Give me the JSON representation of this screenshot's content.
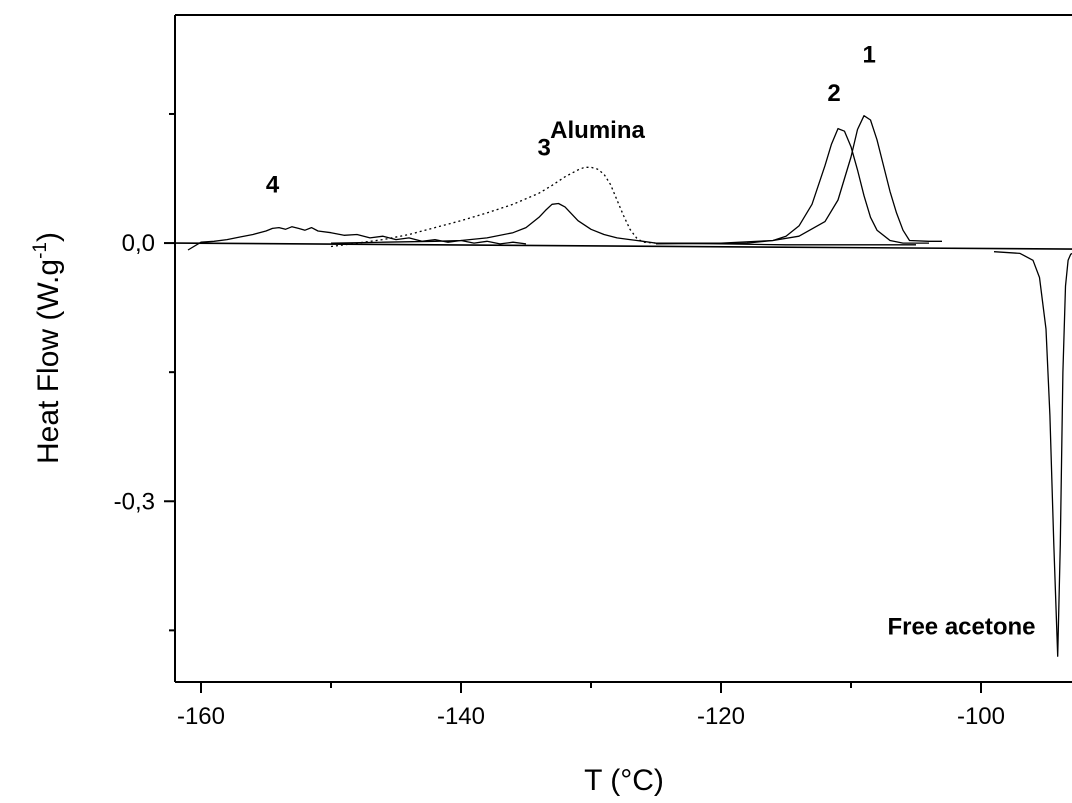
{
  "chart_data": {
    "type": "line",
    "title": "",
    "xlabel": "T (°C)",
    "ylabel": "Heat Flow (W.g",
    "ylabel_sup": "-1",
    "ylabel_close": ")",
    "xlim": [
      -162,
      -93
    ],
    "ylim": [
      -0.51,
      0.265
    ],
    "x_ticks": [
      -160,
      -140,
      -120,
      -100
    ],
    "x_tick_labels": [
      "-160",
      "-140",
      "-120",
      "-100"
    ],
    "y_ticks": [
      0.0,
      -0.3
    ],
    "y_tick_labels": [
      "0,0",
      "-0,3"
    ],
    "y_minor_ticks": [
      0.15,
      -0.15,
      -0.45
    ],
    "grid": false,
    "annotations": [
      {
        "text": "1",
        "x": -108.6,
        "y": 0.21
      },
      {
        "text": "2",
        "x": -111.3,
        "y": 0.165
      },
      {
        "text": "3",
        "x": -133.6,
        "y": 0.102
      },
      {
        "text": "Alumina",
        "x": -129.5,
        "y": 0.122
      },
      {
        "text": "4",
        "x": -154.5,
        "y": 0.059
      },
      {
        "text": "Free acetone",
        "x": -101.5,
        "y": -0.455
      }
    ],
    "series": [
      {
        "label": "1",
        "style": "solid",
        "x": [
          -125,
          -120,
          -116,
          -114,
          -112,
          -111,
          -110,
          -109.5,
          -109,
          -108.5,
          -108,
          -107.5,
          -107,
          -106.5,
          -106,
          -105.5,
          -104,
          -103
        ],
        "y": [
          0.0,
          0.0,
          0.003,
          0.008,
          0.025,
          0.05,
          0.1,
          0.132,
          0.148,
          0.143,
          0.12,
          0.09,
          0.06,
          0.035,
          0.015,
          0.003,
          0.002,
          0.002
        ]
      },
      {
        "label": "2",
        "style": "solid",
        "x": [
          -125,
          -118,
          -116,
          -115,
          -114,
          -113,
          -112,
          -111.5,
          -111,
          -110.5,
          -110,
          -109.5,
          -109,
          -108.5,
          -108,
          -107,
          -106,
          -105,
          -104
        ],
        "y": [
          -0.001,
          0.0,
          0.003,
          0.008,
          0.02,
          0.045,
          0.09,
          0.115,
          0.133,
          0.13,
          0.112,
          0.085,
          0.055,
          0.03,
          0.015,
          0.003,
          0.0,
          0.0,
          0.0
        ]
      },
      {
        "label": "3",
        "style": "solid",
        "x": [
          -150,
          -146,
          -142,
          -140,
          -138,
          -136,
          -135,
          -134,
          -133.5,
          -133,
          -132.5,
          -132,
          -131.5,
          -131,
          -130,
          -129,
          -128,
          -127,
          -126,
          -125,
          -120,
          -115,
          -110,
          -105
        ],
        "y": [
          0.0,
          0.001,
          0.002,
          0.003,
          0.006,
          0.012,
          0.018,
          0.03,
          0.038,
          0.045,
          0.046,
          0.042,
          0.034,
          0.026,
          0.016,
          0.01,
          0.006,
          0.004,
          0.002,
          0.0,
          -0.001,
          -0.002,
          -0.002,
          -0.002
        ]
      },
      {
        "label": "Alumina",
        "style": "dotted",
        "x": [
          -150,
          -148,
          -146,
          -144,
          -142,
          -140,
          -138,
          -136,
          -134,
          -133,
          -132,
          -131,
          -130.5,
          -130,
          -129.5,
          -129,
          -128.5,
          -128,
          -127.5,
          -127,
          -126.5,
          -126,
          -125,
          -124
        ],
        "y": [
          -0.004,
          0.0,
          0.004,
          0.01,
          0.018,
          0.026,
          0.035,
          0.045,
          0.058,
          0.067,
          0.077,
          0.085,
          0.088,
          0.088,
          0.086,
          0.08,
          0.068,
          0.05,
          0.032,
          0.016,
          0.006,
          0.001,
          0.0,
          0.0
        ]
      },
      {
        "label": "4",
        "style": "solid",
        "x": [
          -161,
          -160,
          -159,
          -158,
          -157,
          -156,
          -155,
          -154.5,
          -154,
          -153.5,
          -153,
          -152.5,
          -152,
          -151.5,
          -151,
          -150,
          -149,
          -148,
          -147,
          -146,
          -145,
          -144,
          -143,
          -142,
          -141,
          -140,
          -139,
          -138,
          -137,
          -136,
          -135
        ],
        "y": [
          -0.008,
          0.001,
          0.002,
          0.004,
          0.007,
          0.01,
          0.014,
          0.017,
          0.018,
          0.016,
          0.019,
          0.017,
          0.015,
          0.018,
          0.014,
          0.012,
          0.009,
          0.01,
          0.006,
          0.008,
          0.004,
          0.006,
          0.002,
          0.004,
          0.001,
          0.003,
          0.0,
          0.002,
          -0.001,
          0.001,
          -0.001
        ]
      },
      {
        "label": "Free acetone",
        "style": "solid",
        "x": [
          -99,
          -97,
          -96,
          -95.5,
          -95,
          -94.7,
          -94.4,
          -94.1,
          -93.9,
          -93.7,
          -93.5,
          -93.3,
          -93.1,
          -93
        ],
        "y": [
          -0.01,
          -0.012,
          -0.02,
          -0.04,
          -0.1,
          -0.2,
          -0.35,
          -0.48,
          -0.35,
          -0.15,
          -0.05,
          -0.02,
          -0.013,
          -0.012
        ]
      }
    ],
    "baseline": {
      "x": [
        -162,
        -93
      ],
      "y": [
        0.0,
        -0.007
      ]
    }
  }
}
